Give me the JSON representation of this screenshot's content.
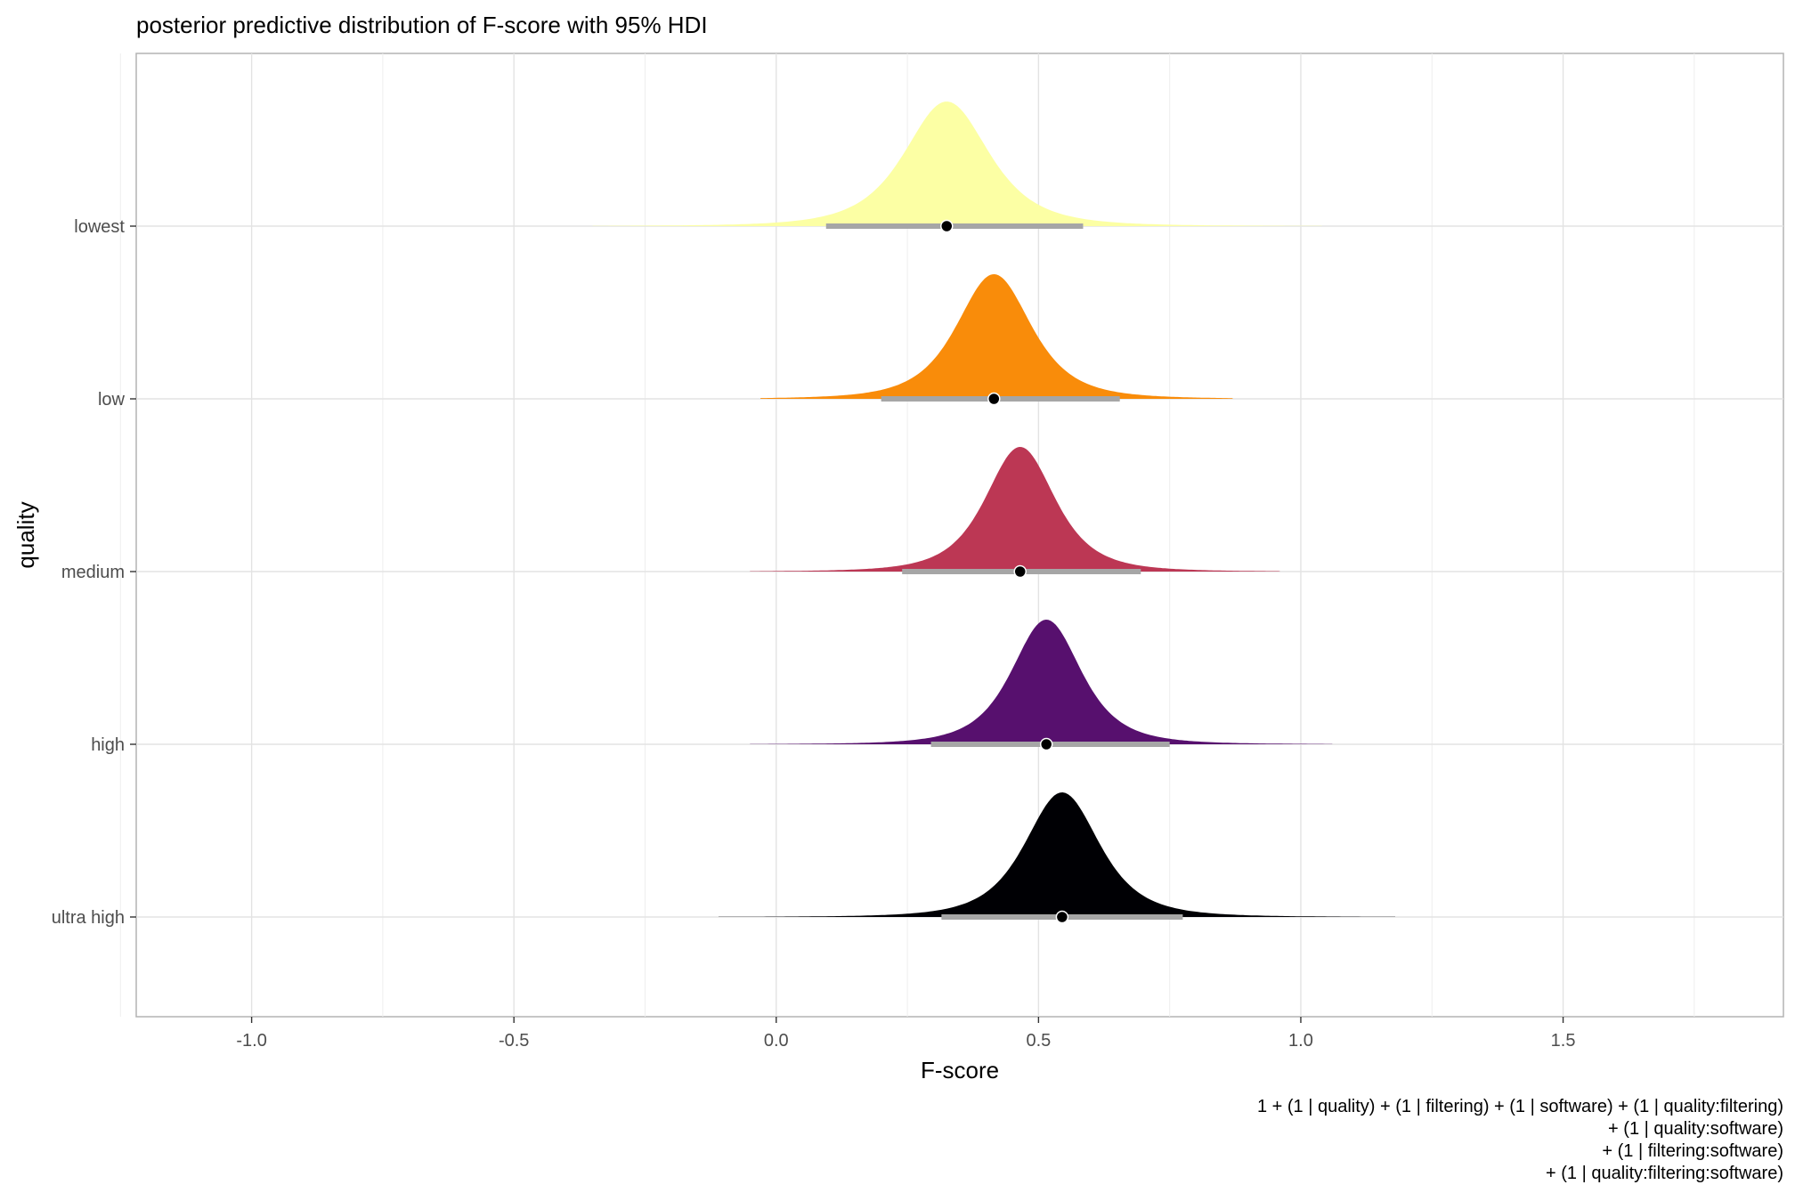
{
  "chart_data": {
    "type": "ridgeline-density",
    "title": "posterior predictive distribution of F-score with 95% HDI",
    "xlabel": "F-score",
    "ylabel": "quality",
    "xlim": [
      -1.22,
      1.92
    ],
    "x_ticks": [
      -1.0,
      -0.5,
      0.0,
      0.5,
      1.0,
      1.5
    ],
    "x_tick_labels": [
      "-1.0",
      "-0.5",
      "0.0",
      "0.5",
      "1.0",
      "1.5"
    ],
    "grid": true,
    "caption": [
      "1 + (1 | quality) + (1 | filtering) + (1 | software) + (1 | quality:filtering)",
      "+ (1 | quality:software)",
      "+ (1 | filtering:software)",
      "+ (1 | quality:filtering:software)"
    ],
    "series": [
      {
        "name": "lowest",
        "color": "#FCFFA4",
        "point_estimate": 0.325,
        "hdi": [
          0.095,
          0.585
        ],
        "range": [
          -0.35,
          1.04
        ],
        "sd": 0.085
      },
      {
        "name": "low",
        "color": "#F98C0A",
        "point_estimate": 0.415,
        "hdi": [
          0.2,
          0.655
        ],
        "range": [
          -0.03,
          0.87
        ],
        "sd": 0.075
      },
      {
        "name": "medium",
        "color": "#BC3754",
        "point_estimate": 0.465,
        "hdi": [
          0.24,
          0.695
        ],
        "range": [
          -0.05,
          0.96
        ],
        "sd": 0.07
      },
      {
        "name": "high",
        "color": "#57106E",
        "point_estimate": 0.515,
        "hdi": [
          0.295,
          0.75
        ],
        "range": [
          -0.05,
          1.06
        ],
        "sd": 0.07
      },
      {
        "name": "ultra high",
        "color": "#000004",
        "point_estimate": 0.545,
        "hdi": [
          0.315,
          0.775
        ],
        "range": [
          -0.11,
          1.18
        ],
        "sd": 0.075
      }
    ]
  }
}
